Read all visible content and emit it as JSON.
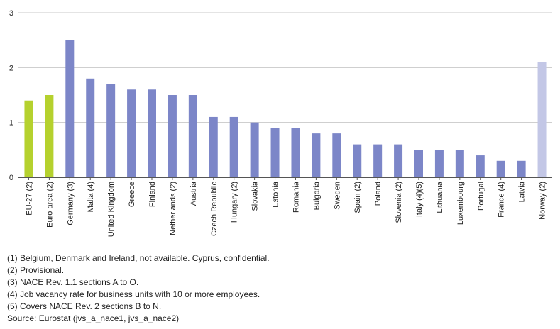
{
  "chart_data": {
    "type": "bar",
    "categories": [
      "EU-27 (2)",
      "Euro area (2)",
      "Germany (3)",
      "Malta (4)",
      "United Kingdom",
      "Greece",
      "Finland",
      "Netherlands (2)",
      "Austria",
      "Czech Republic",
      "Hungary (2)",
      "Slovakia",
      "Estonia",
      "Romania",
      "Bulgaria",
      "Sweden",
      "Spain (2)",
      "Poland",
      "Slovenia (2)",
      "Italy (4)(5)",
      "Lithuania",
      "Luxembourg",
      "Portugal",
      "France (4)",
      "Latvia",
      "Norway (2)"
    ],
    "values": [
      1.4,
      1.5,
      2.5,
      1.8,
      1.7,
      1.6,
      1.6,
      1.5,
      1.5,
      1.1,
      1.1,
      1.0,
      0.9,
      0.9,
      0.8,
      0.8,
      0.6,
      0.6,
      0.6,
      0.5,
      0.5,
      0.5,
      0.4,
      0.3,
      0.3,
      2.1
    ],
    "groups": [
      "aggregate",
      "aggregate",
      "member",
      "member",
      "member",
      "member",
      "member",
      "member",
      "member",
      "member",
      "member",
      "member",
      "member",
      "member",
      "member",
      "member",
      "member",
      "member",
      "member",
      "member",
      "member",
      "member",
      "member",
      "member",
      "member",
      "efta"
    ],
    "colors": {
      "aggregate": "#b5d12e",
      "member": "#7c86c8",
      "efta": "#c3c7e6",
      "grid": "#c8c8c8",
      "axis": "#555555"
    },
    "ylim": [
      0,
      3
    ],
    "yticks": [
      "0",
      "1",
      "2",
      "3"
    ],
    "grid": true,
    "title": "",
    "xlabel": "",
    "ylabel": ""
  },
  "notes": [
    "(1) Belgium, Denmark and Ireland, not available. Cyprus, confidential.",
    "(2) Provisional.",
    "(3) NACE Rev. 1.1 sections A to O.",
    "(4) Job vacancy rate for business units with 10 or more employees.",
    "(5) Covers NACE Rev. 2 sections B to N."
  ],
  "source": "Source: Eurostat (jvs_a_nace1, jvs_a_nace2)"
}
